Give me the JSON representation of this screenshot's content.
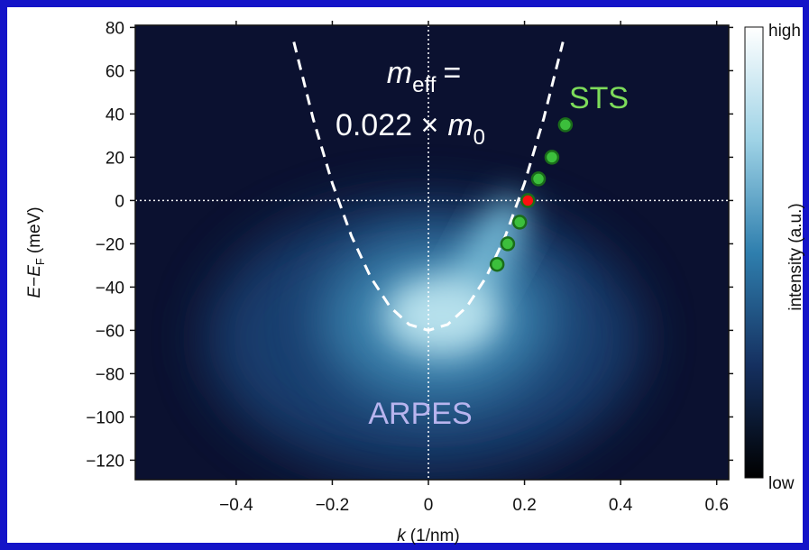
{
  "chart_data": {
    "type": "scatter",
    "xlim": [
      -0.61,
      0.625
    ],
    "ylim": [
      -129,
      81
    ],
    "xticks": [
      {
        "value": -0.4,
        "label": "−0.4"
      },
      {
        "value": -0.2,
        "label": "−0.2"
      },
      0,
      0.2,
      0.4,
      0.6
    ],
    "yticks": [
      80,
      60,
      40,
      20,
      0,
      {
        "value": -20,
        "label": "−20"
      },
      {
        "value": -40,
        "label": "−40"
      },
      {
        "value": -60,
        "label": "−60"
      },
      {
        "value": -80,
        "label": "−80"
      },
      {
        "value": -100,
        "label": "−100"
      },
      {
        "value": -120,
        "label": "−120"
      }
    ],
    "x_label": [
      "k",
      "(1/nm)"
    ],
    "y_label": [
      "E",
      "−",
      "E",
      "F",
      "(meV)"
    ],
    "zero_lines": true,
    "annotation": [
      "m",
      "eff",
      "=",
      "0.022 ×",
      "m",
      "0"
    ],
    "labels": {
      "sts": "STS",
      "arpes": "ARPES"
    },
    "colorbar": {
      "label": "intensity (a.u.)",
      "high": "high",
      "low": "low"
    },
    "series": [
      {
        "mode": "line",
        "style": "dashed",
        "color": "#ffffff",
        "x": [
          -0.28,
          -0.24,
          -0.2,
          -0.16,
          -0.12,
          -0.08,
          -0.04,
          0,
          0.04,
          0.08,
          0.12,
          0.16,
          0.2,
          0.24,
          0.28
        ],
        "values": [
          73.3,
          37.9,
          8,
          -16.5,
          -35.5,
          -49.1,
          -57.3,
          -60,
          -57.3,
          -49.1,
          -35.5,
          -16.5,
          8,
          37.9,
          73.3
        ]
      },
      {
        "mode": "markers",
        "color": "#3cbf3c",
        "x": [
          0.143,
          0.165,
          0.19,
          0.229,
          0.257,
          0.285
        ],
        "values": [
          -29.5,
          -20,
          -10,
          10,
          20,
          35
        ]
      },
      {
        "mode": "markers",
        "color": "#ff1010",
        "x": [
          0.207
        ],
        "values": [
          0
        ]
      }
    ]
  }
}
